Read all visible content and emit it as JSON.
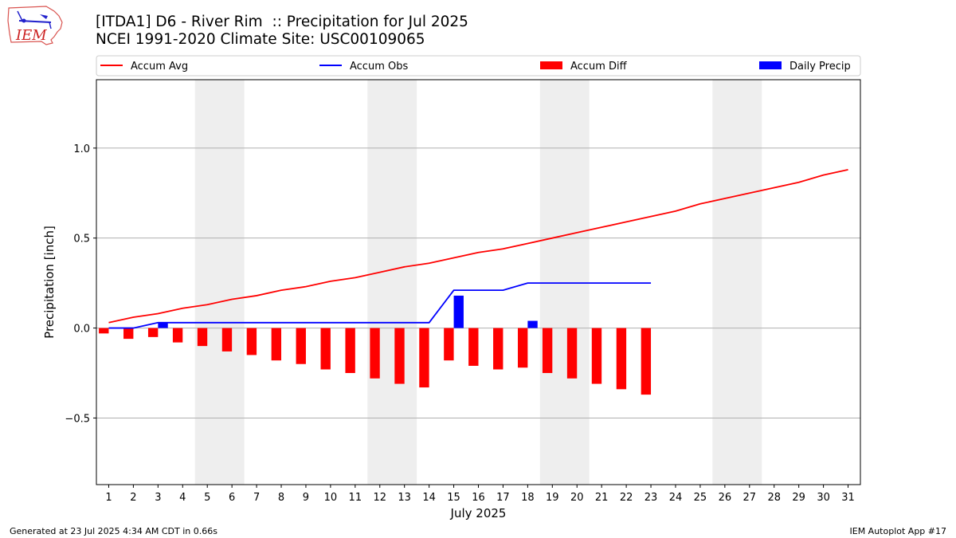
{
  "header": {
    "title_line1": "[ITDA1] D6 - River Rim  :: Precipitation for Jul 2025",
    "title_line2": "NCEI 1991-2020 Climate Site: USC00109065",
    "logo_text": "IEM"
  },
  "footer": {
    "generated": "Generated at 23 Jul 2025 4:34 AM CDT in 0.66s",
    "app": "IEM Autoplot App #17"
  },
  "colors": {
    "accum_avg": "#ff0000",
    "accum_obs": "#0000ff",
    "accum_diff": "#ff0000",
    "daily_precip": "#0000ff",
    "weekend_shade": "#eeeeee",
    "grid": "#b0b0b0"
  },
  "chart_data": {
    "type": "bar",
    "xlabel": "July 2025",
    "ylabel": "Precipitation [inch]",
    "xlim": [
      0.5,
      31.5
    ],
    "ylim": [
      -0.87,
      1.38
    ],
    "yticks": [
      -0.5,
      0.0,
      0.5,
      1.0
    ],
    "ytick_labels": [
      "−0.5",
      "0.0",
      "0.5",
      "1.0"
    ],
    "days": [
      1,
      2,
      3,
      4,
      5,
      6,
      7,
      8,
      9,
      10,
      11,
      12,
      13,
      14,
      15,
      16,
      17,
      18,
      19,
      20,
      21,
      22,
      23,
      24,
      25,
      26,
      27,
      28,
      29,
      30,
      31
    ],
    "grid": "horizontal",
    "legend_placement": "top",
    "weekend_shaded_days": [
      [
        5,
        6
      ],
      [
        12,
        13
      ],
      [
        19,
        20
      ],
      [
        26,
        27
      ]
    ],
    "series": [
      {
        "name": "Accum Avg",
        "kind": "line",
        "values": [
          0.03,
          0.06,
          0.08,
          0.11,
          0.13,
          0.16,
          0.18,
          0.21,
          0.23,
          0.26,
          0.28,
          0.31,
          0.34,
          0.36,
          0.39,
          0.42,
          0.44,
          0.47,
          0.5,
          0.53,
          0.56,
          0.59,
          0.62,
          0.65,
          0.69,
          0.72,
          0.75,
          0.78,
          0.81,
          0.85,
          0.88
        ]
      },
      {
        "name": "Accum Obs",
        "kind": "line",
        "values": [
          0.0,
          0.0,
          0.03,
          0.03,
          0.03,
          0.03,
          0.03,
          0.03,
          0.03,
          0.03,
          0.03,
          0.03,
          0.03,
          0.03,
          0.21,
          0.21,
          0.21,
          0.25,
          0.25,
          0.25,
          0.25,
          0.25,
          0.25
        ]
      },
      {
        "name": "Accum Diff",
        "kind": "bar",
        "values": [
          -0.03,
          -0.06,
          -0.05,
          -0.08,
          -0.1,
          -0.13,
          -0.15,
          -0.18,
          -0.2,
          -0.23,
          -0.25,
          -0.28,
          -0.31,
          -0.33,
          -0.18,
          -0.21,
          -0.23,
          -0.22,
          -0.25,
          -0.28,
          -0.31,
          -0.34,
          -0.37
        ]
      },
      {
        "name": "Daily Precip",
        "kind": "bar",
        "values": [
          0.0,
          0.0,
          0.03,
          0.0,
          0.0,
          0.0,
          0.0,
          0.0,
          0.0,
          0.0,
          0.0,
          0.0,
          0.0,
          0.0,
          0.18,
          0.0,
          0.0,
          0.04,
          0.0,
          0.0,
          0.0,
          0.0,
          0.0
        ]
      }
    ]
  }
}
